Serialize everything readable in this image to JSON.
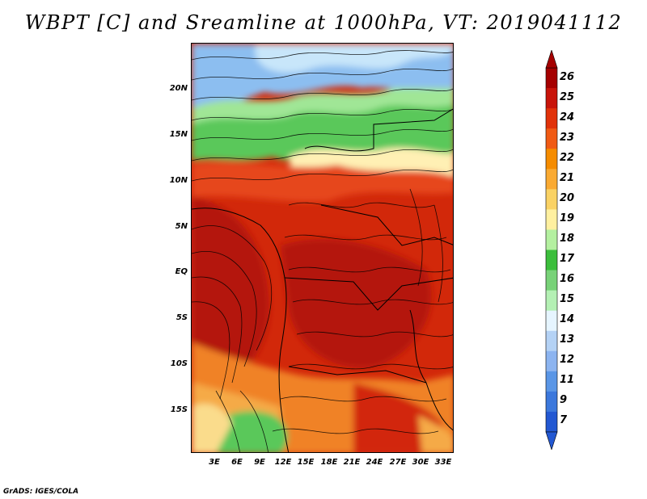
{
  "title": "WBPT [C] and Sreamline at 1000hPa, VT: 2019041112",
  "credit": "GrADS: IGES/COLA",
  "y_axis_labels": [
    "20N",
    "15N",
    "10N",
    "5N",
    "EQ",
    "5S",
    "10S",
    "15S"
  ],
  "x_axis_labels": [
    "3E",
    "6E",
    "9E",
    "12E",
    "15E",
    "18E",
    "21E",
    "24E",
    "27E",
    "30E",
    "33E"
  ],
  "colorbar": {
    "labels": [
      "26",
      "25",
      "24",
      "23",
      "22",
      "21",
      "20",
      "19",
      "18",
      "17",
      "16",
      "15",
      "14",
      "13",
      "12",
      "11",
      "9",
      "7"
    ],
    "colors": [
      "#a50000",
      "#c8140a",
      "#e1320a",
      "#f05a14",
      "#f58c00",
      "#faaa32",
      "#fad264",
      "#fff0a0",
      "#b4f0a0",
      "#3cbe3c",
      "#78d278",
      "#b4f0b4",
      "#e6f5ff",
      "#b4d2f5",
      "#8cb4f0",
      "#5a96e6",
      "#3c78dc",
      "#2358d2"
    ]
  },
  "map": {
    "palette": {
      "deep_red": "#b4140a",
      "red": "#d2280a",
      "orange_red": "#e6461e",
      "orange": "#f08228",
      "light_orange": "#f5aa46",
      "yellow": "#fadc8c",
      "light_yellow": "#fff0b4",
      "green": "#5ac85a",
      "light_green": "#a0e696",
      "pale_green": "#c8f0c8",
      "light_blue": "#c8e6fa",
      "blue": "#8cbef0"
    }
  }
}
